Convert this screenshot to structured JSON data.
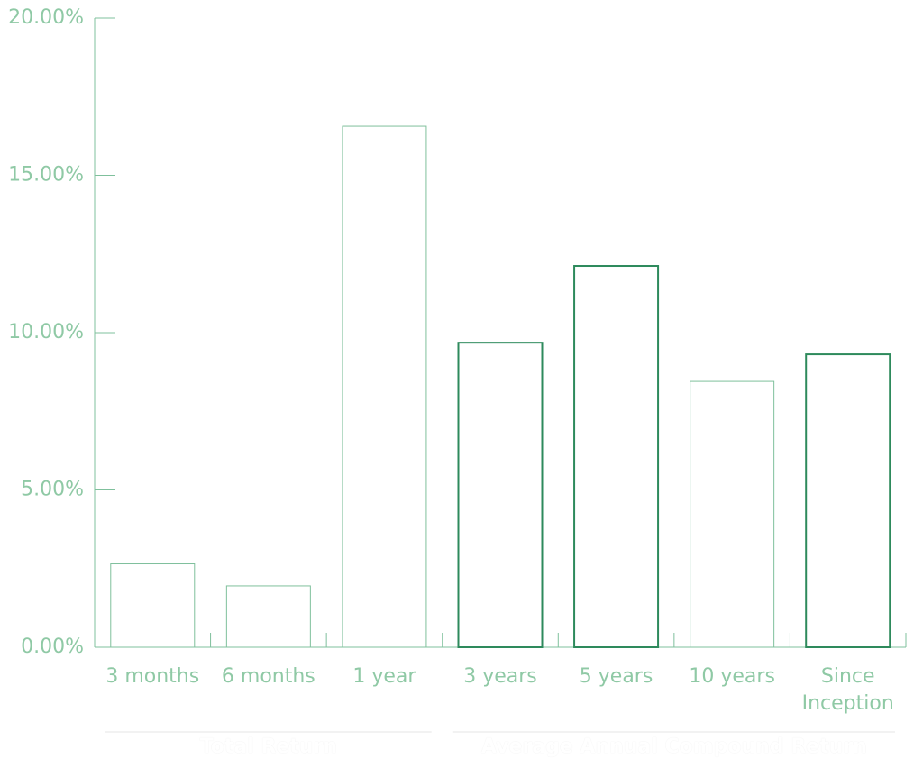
{
  "chart_data": {
    "type": "bar",
    "groups": [
      {
        "name": "Total Return",
        "categories": [
          "3 months",
          "6 months",
          "1 year"
        ],
        "values": [
          2.65,
          1.95,
          16.56
        ],
        "colors": [
          "#7fc09c",
          "#7fc09c",
          "#7fc09c"
        ]
      },
      {
        "name": "Average Annual Compound Return",
        "categories": [
          "3 years",
          "5 years",
          "10 years",
          "Since Inception"
        ],
        "values": [
          9.68,
          12.12,
          8.45,
          9.31
        ],
        "colors": [
          "#2e8a5c",
          "#2e8a5c",
          "#7fc09c",
          "#2e8a5c"
        ]
      }
    ],
    "ylim": [
      0,
      20
    ],
    "yticks": [
      {
        "value": 0,
        "label": "0.00%"
      },
      {
        "value": 5,
        "label": "5.00%"
      },
      {
        "value": 10,
        "label": "10.00%"
      },
      {
        "value": 15,
        "label": "15.00%"
      },
      {
        "value": 20,
        "label": "20.00%"
      }
    ],
    "axis_color": "#7fc09c"
  }
}
